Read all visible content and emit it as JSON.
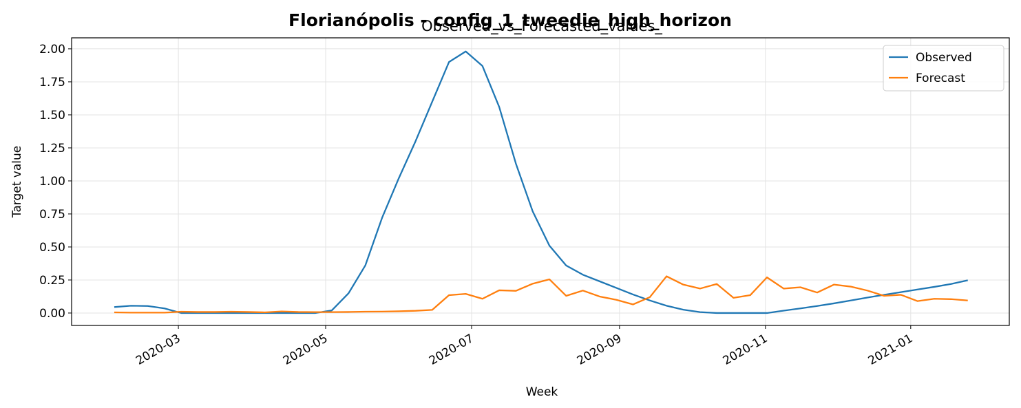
{
  "chart_data": {
    "type": "line",
    "title": "Florianópolis - config_1_tweedie_high_horizon",
    "subtitle": "Observed_vs_Forecasted_values_",
    "x_label": "Week",
    "y_label": "Target value",
    "categories": [
      null,
      null,
      null,
      null,
      null,
      null,
      null,
      null,
      null,
      null,
      null,
      null,
      null,
      null,
      null,
      null,
      null,
      null,
      null,
      null,
      null,
      null,
      null,
      null,
      null,
      null,
      null,
      null,
      null,
      null,
      null,
      null,
      null,
      null,
      null,
      null,
      null,
      null,
      null,
      null,
      null,
      null,
      null,
      null,
      null,
      null,
      null,
      null,
      null,
      null,
      null,
      null
    ],
    "series": [
      {
        "name": "Observed",
        "color": "#1f77b4",
        "values": [
          0.045,
          0.055,
          0.053,
          0.035,
          0,
          0,
          0,
          0,
          0,
          0,
          0,
          0,
          0,
          0.02,
          0.15,
          0.36,
          0.72,
          1.02,
          1.3,
          1.6,
          1.9,
          1.98,
          1.87,
          1.56,
          1.13,
          0.77,
          0.51,
          0.36,
          0.29,
          0.24,
          0.19,
          0.14,
          0.095,
          0.055,
          0.025,
          0.007,
          0,
          0,
          0,
          0,
          0.018,
          0.035,
          0.053,
          0.073,
          0.095,
          0.117,
          0.138,
          0.158,
          0.178,
          0.198,
          0.22,
          0.248
        ]
      },
      {
        "name": "Forecast",
        "color": "#ff7f0e",
        "values": [
          0.005,
          0.003,
          0.003,
          0.003,
          0.01,
          0.008,
          0.008,
          0.01,
          0.008,
          0.005,
          0.012,
          0.008,
          0.007,
          0.007,
          0.008,
          0.01,
          0.011,
          0.013,
          0.017,
          0.024,
          0.135,
          0.145,
          0.108,
          0.172,
          0.168,
          0.222,
          0.255,
          0.13,
          0.17,
          0.125,
          0.1,
          0.065,
          0.12,
          0.278,
          0.215,
          0.185,
          0.22,
          0.115,
          0.135,
          0.27,
          0.185,
          0.195,
          0.155,
          0.215,
          0.2,
          0.17,
          0.13,
          0.138,
          0.09,
          0.108,
          0.105,
          0.095
        ]
      }
    ],
    "xlim": [
      -2.55,
      53.48
    ],
    "xticks": [
      {
        "value": 3.83,
        "label": "2020-03"
      },
      {
        "value": 12.63,
        "label": "2020-05"
      },
      {
        "value": 21.35,
        "label": "2020-07"
      },
      {
        "value": 30.19,
        "label": "2020-09"
      },
      {
        "value": 38.91,
        "label": "2020-11"
      },
      {
        "value": 47.59,
        "label": "2021-01"
      }
    ],
    "ylim": [
      -0.094,
      2.083
    ],
    "yticks": [
      {
        "value": 0,
        "label": "0.00"
      },
      {
        "value": 0.25,
        "label": "0.25"
      },
      {
        "value": 0.5,
        "label": "0.50"
      },
      {
        "value": 0.75,
        "label": "0.75"
      },
      {
        "value": 1,
        "label": "1.00"
      },
      {
        "value": 1.25,
        "label": "1.25"
      },
      {
        "value": 1.5,
        "label": "1.50"
      },
      {
        "value": 1.75,
        "label": "1.75"
      },
      {
        "value": 2,
        "label": "2.00"
      }
    ],
    "grid": true,
    "legend": "upper right"
  }
}
